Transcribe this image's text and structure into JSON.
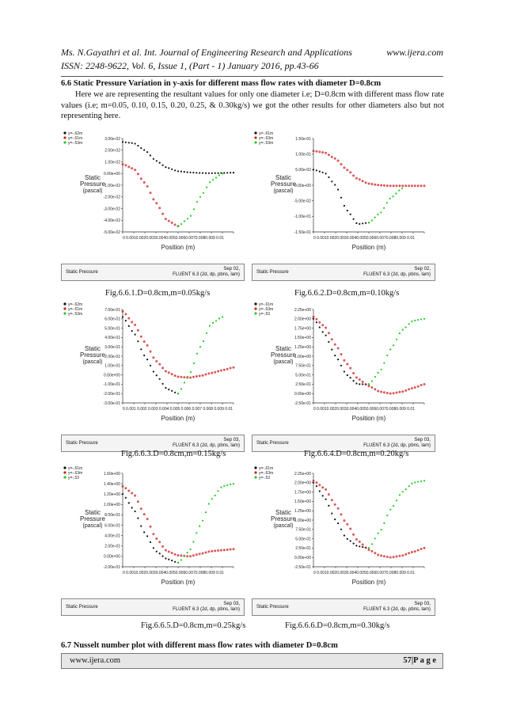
{
  "header": {
    "authors_line": "Ms. N.Gayathri et al. Int. Journal of Engineering Research and Applications",
    "website": "www.ijera.com",
    "issn_line": "ISSN: 2248-9622, Vol. 6, Issue 1, (Part - 1) January 2016, pp.43-66"
  },
  "section_66": {
    "heading": "6.6 Static Pressure Variation in y-axis for different mass flow rates with diameter D=0.8cm",
    "paragraph": "Here we are representing the resultant values for only one diameter i.e; D=0.8cm with different mass flow rate values (i.e; m=0.05, 0.10, 0.15, 0.20, 0.25, & 0.30kg/s) we got the other results for other diameters also but not representing here."
  },
  "figures": [
    {
      "caption": "Fig.6.6.1.D=0.8cm,m=0.05kg/s",
      "ylabel": [
        "Static",
        "Pressure",
        "(pascal)"
      ],
      "xlabel": "Position (m)",
      "xticks": "0  0.0010.0020.0030.0040.0050.0060.0070.0080.009 0.01",
      "yticks": [
        "3.00e-02",
        "2.00e-02",
        "1.00e-02",
        "0.00e+00",
        "-1.00e-02",
        "-2.00e-02",
        "-3.00e-02",
        "-4.00e-02",
        "-5.00e-02"
      ],
      "legend": [
        "y=-.62m",
        "y=-.61m",
        "y=-.53m"
      ],
      "status_left": "Static Pressure",
      "status_right": [
        "Sep 02,",
        "FLUENT 6.3 (2d, dp, pbns, lam)"
      ]
    },
    {
      "caption": "Fig.6.6.2.D=0.8cm,m=0.10kg/s",
      "ylabel": [
        "Static",
        "Pressure",
        "(pascal)"
      ],
      "xlabel": "Position (m)",
      "xticks": "0  0.0010.0020.0030.0040.0050.0060.0070.0080.009 0.01",
      "yticks": [
        "1.50e-01",
        "1.00e-01",
        "5.00e-02",
        "0.00e+00",
        "-5.00e-02",
        "-1.00e-01",
        "-1.50e-01"
      ],
      "legend": [
        "y=-.61m",
        "y=-.63m",
        "y=-.53m"
      ],
      "status_left": "Static Pressure",
      "status_right": [
        "Sep 02,",
        "FLUENT 6.3 (2d, dp, pbns, lam)"
      ]
    },
    {
      "caption": "Fig.6.6.3.D=0.8cm,m=0.15kg/s",
      "ylabel": [
        "Static",
        "Pressure",
        "(pascal)"
      ],
      "xlabel": "Position (m)",
      "xticks": "0  0.001 0.002 0.003 0.004 0.005 0.006 0.007 0.008 0.009 0.01",
      "yticks": [
        "7.00e-01",
        "6.00e-01",
        "5.00e-01",
        "4.00e-01",
        "3.00e-01",
        "2.00e-01",
        "1.00e-01",
        "0.00e+00",
        "-1.00e-01",
        "-2.00e-01",
        "-3.00e-01"
      ],
      "legend": [
        "y=-.62m",
        "y=-.61m",
        "y=-.53m"
      ],
      "status_left": "Static Pressure",
      "status_right": [
        "Sep 03,",
        "FLUENT 6.3 (2d, dp, pbns, lam)"
      ]
    },
    {
      "caption": "Fig.6.6.4.D=0.8cm,m=0.20kg/s",
      "ylabel": [
        "Static",
        "Pressure",
        "(pascal)"
      ],
      "xlabel": "Position (m)",
      "xticks": "0  0.0010.0020.0030.0040.0050.0060.0070.0080.009 0.01",
      "yticks": [
        "2.25e+00",
        "2.00e+00",
        "1.75e+00",
        "1.50e+00",
        "1.25e+00",
        "1.00e+00",
        "7.50e-01",
        "5.00e-01",
        "2.50e-01",
        "0.00e+00",
        "-2.50e-01"
      ],
      "legend": [
        "y=-.61m",
        "y=-.63m",
        "y=-.53"
      ],
      "status_left": "Static Pressure",
      "status_right": [
        "Sep 03,",
        "FLUENT 6.3 (2d, dp, pbns, lam)"
      ]
    },
    {
      "caption": "Fig.6.6.5.D=0.8cm,m=0.25kg/s",
      "ylabel": [
        "Static",
        "Pressure",
        "(pascal)"
      ],
      "xlabel": "Position (m)",
      "xticks": "0  0.0010.0020.0030.0040.0050.0060.0070.0080.009 0.01",
      "yticks": [
        "1.60e+00",
        "1.40e+00",
        "1.20e+00",
        "1.00e+00",
        "8.00e-01",
        "6.00e-01",
        "4.00e-01",
        "2.00e-01",
        "0.00e+00",
        "-2.00e-01"
      ],
      "legend": [
        "y=-.61m",
        "y=-.63m",
        "y=-.53"
      ],
      "status_left": "Static Pressure",
      "status_right": [
        "Sep 03,",
        "FLUENT 6.3 (2d, dp, pbns, lam)"
      ]
    },
    {
      "caption": "Fig.6.6.6.D=0.8cm,m=0.30kg/s",
      "ylabel": [
        "Static",
        "Pressure",
        "(pascal)"
      ],
      "xlabel": "Position (m)",
      "xticks": "0  0.0010.0020.0030.0040.0050.0060.0070.0080.009 0.01",
      "yticks": [
        "2.25e+00",
        "2.00e+00",
        "1.75e+00",
        "1.50e+00",
        "1.25e+00",
        "1.00e+00",
        "7.50e-01",
        "5.00e-01",
        "2.50e-01",
        "0.00e+00",
        "-2.50e-01"
      ],
      "legend": [
        "y=-.61m",
        "y=-.63m",
        "y=-.53"
      ],
      "status_left": "Static Pressure",
      "status_right": [
        "Sep 03,",
        "FLUENT 6.3 (2d, dp, pbns, lam)"
      ]
    }
  ],
  "section_67": {
    "heading": "6.7 Nusselt number plot with different mass flow rates with diameter D=0.8cm"
  },
  "footer": {
    "website": "www.ijera.com",
    "page": "57|P a g e"
  },
  "colors": {
    "series1": "#111111",
    "series2": "#cc2222",
    "series3": "#22cc22",
    "footer_bg": "#e6e6e6"
  },
  "chart_data": [
    {
      "type": "scatter",
      "x": [
        0,
        0.001,
        0.002,
        0.003,
        0.004,
        0.005,
        0.006,
        0.007,
        0.008,
        0.009,
        0.01
      ],
      "xlim": [
        0,
        0.01
      ],
      "ylim": [
        -0.05,
        0.03
      ],
      "series": [
        {
          "name": "y=-.62m",
          "x": [
            0,
            0.001,
            0.002,
            0.003,
            0.004,
            0.005,
            0.006,
            0.007,
            0.008,
            0.009,
            0.01
          ],
          "y": [
            0.027,
            0.026,
            0.02,
            0.011,
            0.005,
            0.002,
            0.001,
            0.0005,
            0.0003,
            0.0005,
            0.0008
          ]
        },
        {
          "name": "y=-.61m",
          "x": [
            0,
            0.001,
            0.002,
            0.003,
            0.004,
            0.005
          ],
          "y": [
            0.008,
            0.004,
            -0.008,
            -0.025,
            -0.04,
            -0.045
          ]
        },
        {
          "name": "y=-.53m",
          "x": [
            0.005,
            0.006,
            0.007,
            0.008,
            0.009
          ],
          "y": [
            -0.045,
            -0.038,
            -0.02,
            -0.006,
            0.0
          ]
        }
      ]
    },
    {
      "type": "scatter",
      "x": [
        0,
        0.001,
        0.002,
        0.003,
        0.004,
        0.005,
        0.006,
        0.007,
        0.008,
        0.009,
        0.01
      ],
      "xlim": [
        0,
        0.01
      ],
      "ylim": [
        -0.15,
        0.15
      ],
      "series": [
        {
          "name": "y=-.61m",
          "x": [
            0,
            0.001,
            0.002,
            0.003,
            0.004,
            0.005
          ],
          "y": [
            0.05,
            0.04,
            0.0,
            -0.08,
            -0.125,
            -0.12
          ]
        },
        {
          "name": "y=-.63m",
          "x": [
            0,
            0.001,
            0.002,
            0.003,
            0.004,
            0.005,
            0.006,
            0.007,
            0.008,
            0.009,
            0.01
          ],
          "y": [
            0.11,
            0.105,
            0.085,
            0.05,
            0.02,
            0.005,
            0.0,
            -0.002,
            -0.002,
            -0.002,
            -0.002
          ]
        },
        {
          "name": "y=-.53m",
          "x": [
            0.005,
            0.006,
            0.007,
            0.008
          ],
          "y": [
            -0.12,
            -0.09,
            -0.04,
            -0.01
          ]
        }
      ]
    },
    {
      "type": "scatter",
      "x": [
        0,
        0.001,
        0.002,
        0.003,
        0.004,
        0.005,
        0.006,
        0.007,
        0.008,
        0.009,
        0.01
      ],
      "xlim": [
        0,
        0.01
      ],
      "ylim": [
        -0.3,
        0.7
      ],
      "series": [
        {
          "name": "y=-.62m",
          "x": [
            0,
            0.001,
            0.002,
            0.003,
            0.004,
            0.005
          ],
          "y": [
            0.62,
            0.45,
            0.2,
            0.0,
            -0.15,
            -0.2
          ]
        },
        {
          "name": "y=-.61m",
          "x": [
            0,
            0.001,
            0.002,
            0.003,
            0.004,
            0.005,
            0.006,
            0.007,
            0.008,
            0.009,
            0.01
          ],
          "y": [
            0.68,
            0.55,
            0.35,
            0.15,
            0.03,
            -0.02,
            -0.03,
            -0.01,
            0.02,
            0.05,
            0.08
          ]
        },
        {
          "name": "y=-.53m",
          "x": [
            0.005,
            0.006,
            0.007,
            0.008,
            0.009
          ],
          "y": [
            -0.2,
            0.0,
            0.3,
            0.55,
            0.62
          ]
        }
      ]
    },
    {
      "type": "scatter",
      "x": [
        0,
        0.001,
        0.002,
        0.003,
        0.004,
        0.005,
        0.006,
        0.007,
        0.008,
        0.009,
        0.01
      ],
      "xlim": [
        0,
        0.01
      ],
      "ylim": [
        -0.25,
        2.25
      ],
      "series": [
        {
          "name": "y=-.61m",
          "x": [
            0,
            0.001,
            0.002,
            0.003,
            0.004,
            0.005
          ],
          "y": [
            2.0,
            1.6,
            1.0,
            0.5,
            0.25,
            0.25
          ]
        },
        {
          "name": "y=-.63m",
          "x": [
            0,
            0.001,
            0.002,
            0.003,
            0.004,
            0.005,
            0.006,
            0.007,
            0.008,
            0.009,
            0.01
          ],
          "y": [
            2.05,
            1.8,
            1.3,
            0.8,
            0.4,
            0.2,
            0.05,
            0.0,
            0.05,
            0.15,
            0.25
          ]
        },
        {
          "name": "y=-.53",
          "x": [
            0.005,
            0.006,
            0.007,
            0.008,
            0.009,
            0.01
          ],
          "y": [
            0.25,
            0.6,
            1.2,
            1.7,
            1.95,
            2.0
          ]
        }
      ]
    },
    {
      "type": "scatter",
      "x": [
        0,
        0.001,
        0.002,
        0.003,
        0.004,
        0.005,
        0.006,
        0.007,
        0.008,
        0.009,
        0.01
      ],
      "xlim": [
        0,
        0.01
      ],
      "ylim": [
        -0.2,
        1.6
      ],
      "series": [
        {
          "name": "y=-.61m",
          "x": [
            0,
            0.001,
            0.002,
            0.003,
            0.004,
            0.005
          ],
          "y": [
            1.2,
            0.9,
            0.45,
            0.1,
            -0.05,
            -0.12
          ]
        },
        {
          "name": "y=-.63m",
          "x": [
            0,
            0.001,
            0.002,
            0.003,
            0.004,
            0.005,
            0.006,
            0.007,
            0.008,
            0.009,
            0.01
          ],
          "y": [
            1.35,
            1.2,
            0.8,
            0.35,
            0.1,
            0.02,
            0.0,
            0.05,
            0.1,
            0.12,
            0.14
          ]
        },
        {
          "name": "y=-.53",
          "x": [
            0.005,
            0.006,
            0.007,
            0.008,
            0.009,
            0.01
          ],
          "y": [
            -0.12,
            0.1,
            0.6,
            1.1,
            1.35,
            1.4
          ]
        }
      ]
    },
    {
      "type": "scatter",
      "x": [
        0,
        0.001,
        0.002,
        0.003,
        0.004,
        0.005,
        0.006,
        0.007,
        0.008,
        0.009,
        0.01
      ],
      "xlim": [
        0,
        0.01
      ],
      "ylim": [
        -0.25,
        2.25
      ],
      "series": [
        {
          "name": "y=-.61m",
          "x": [
            0,
            0.001,
            0.002,
            0.003,
            0.004,
            0.005
          ],
          "y": [
            2.0,
            1.6,
            1.0,
            0.5,
            0.3,
            0.25
          ]
        },
        {
          "name": "y=-.63m",
          "x": [
            0,
            0.001,
            0.002,
            0.003,
            0.004,
            0.005,
            0.006,
            0.007,
            0.008,
            0.009,
            0.01
          ],
          "y": [
            2.05,
            1.85,
            1.4,
            0.9,
            0.45,
            0.2,
            0.05,
            0.0,
            0.05,
            0.15,
            0.25
          ]
        },
        {
          "name": "y=-.53",
          "x": [
            0.005,
            0.006,
            0.007,
            0.008,
            0.009,
            0.01
          ],
          "y": [
            0.25,
            0.7,
            1.3,
            1.75,
            2.0,
            2.05
          ]
        }
      ]
    }
  ]
}
